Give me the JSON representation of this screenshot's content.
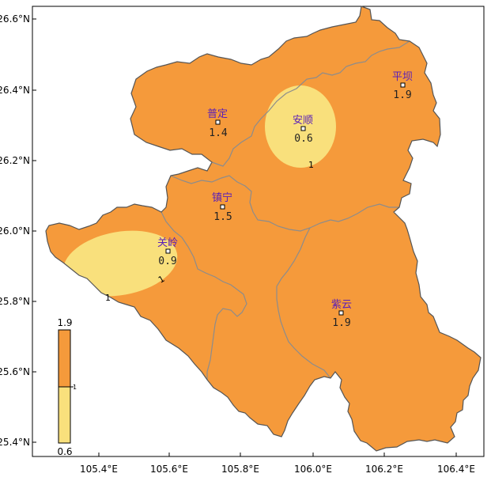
{
  "colors": {
    "high": "#f59a3b",
    "low": "#f9e07c",
    "boundary": "#8c8c8c",
    "outline": "#555555"
  },
  "axes": {
    "x_ticks": [
      "105.4°E",
      "105.6°E",
      "105.8°E",
      "106.0°E",
      "106.2°E",
      "106.4°E"
    ],
    "y_ticks": [
      "26.6°N",
      "26.4°N",
      "26.2°N",
      "26.0°N",
      "25.8°N",
      "25.6°N",
      "25.4°N"
    ]
  },
  "stations": [
    {
      "name": "平坝",
      "value": "1.9"
    },
    {
      "name": "普定",
      "value": "1.4"
    },
    {
      "name": "安顺",
      "value": "0.6"
    },
    {
      "name": "镇宁",
      "value": "1.5"
    },
    {
      "name": "关岭",
      "value": "0.9"
    },
    {
      "name": "紫云",
      "value": "1.9"
    }
  ],
  "contour_labels": [
    "1",
    "1",
    "1"
  ],
  "legend": {
    "max_label": "1.9",
    "mid_label": "1",
    "min_label": "0.6"
  }
}
